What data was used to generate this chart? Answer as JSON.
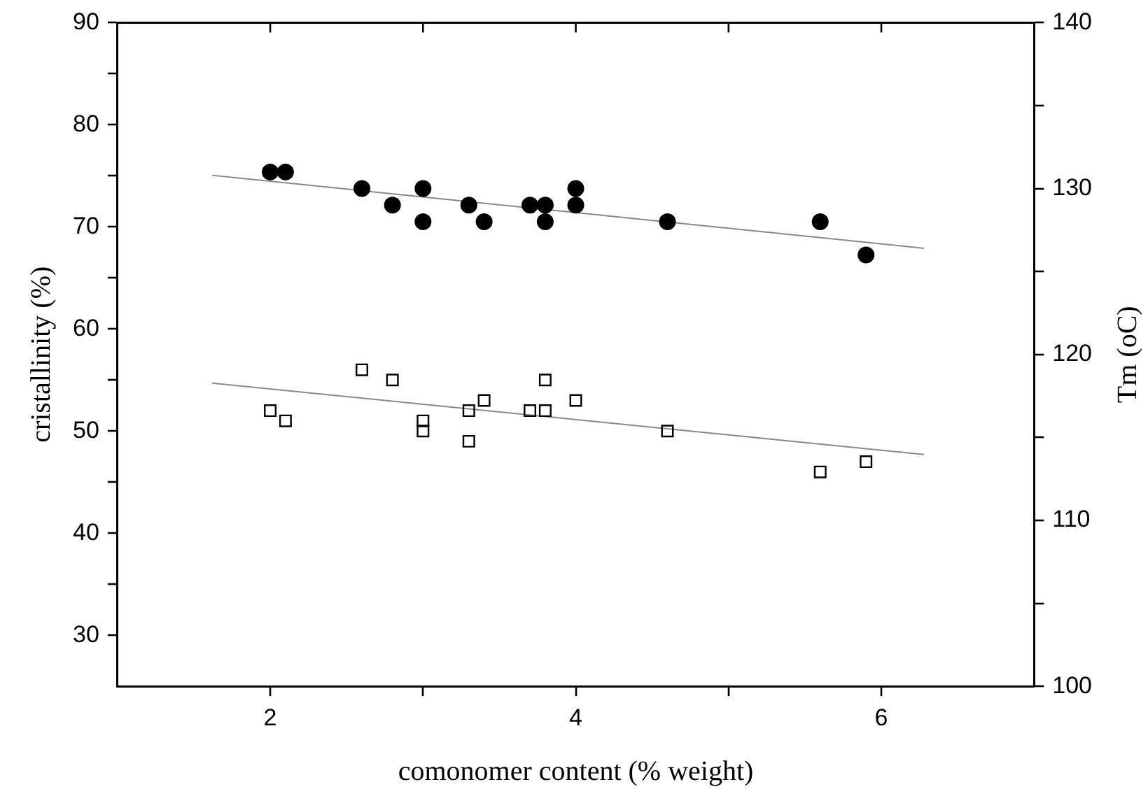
{
  "chart_data": {
    "type": "scatter",
    "xlabel": "comonomer content (% weight)",
    "ylabel": "cristallinity (%)",
    "y2label": "Tm (oC)",
    "xlim": [
      1,
      7
    ],
    "xticks": [
      2,
      {
        "value": 3,
        "label": null
      },
      4,
      {
        "value": 5,
        "label": null
      },
      6
    ],
    "ylim": [
      25,
      90
    ],
    "yticks": [
      30,
      {
        "value": 35,
        "label": null
      },
      40,
      {
        "value": 45,
        "label": null
      },
      50,
      {
        "value": 55,
        "label": null
      },
      60,
      {
        "value": 65,
        "label": null
      },
      70,
      {
        "value": 75,
        "label": null
      },
      80,
      {
        "value": 85,
        "label": null
      },
      90
    ],
    "y2lim": [
      100,
      140
    ],
    "y2ticks": [
      100,
      {
        "value": 105,
        "label": null
      },
      110,
      {
        "value": 115,
        "label": null
      },
      120,
      {
        "value": 125,
        "label": null
      },
      130,
      {
        "value": 135,
        "label": null
      },
      140
    ],
    "grid": false,
    "legend": false,
    "series": [
      {
        "axis": "y2",
        "marker": "circle",
        "color": "#000000",
        "x": [
          2.0,
          2.1,
          2.6,
          2.8,
          3.0,
          3.0,
          3.3,
          3.4,
          3.7,
          3.8,
          3.8,
          4.0,
          4.0,
          4.6,
          5.6,
          5.9
        ],
        "values": [
          131,
          131,
          130,
          129,
          130,
          128,
          129,
          128,
          129,
          129,
          128,
          130,
          129,
          128,
          128,
          126
        ]
      },
      {
        "axis": "y",
        "marker": "square",
        "color": "#000000",
        "x": [
          2.0,
          2.1,
          2.6,
          2.8,
          3.0,
          3.0,
          3.3,
          3.3,
          3.4,
          3.7,
          3.8,
          3.8,
          4.0,
          4.6,
          5.6,
          5.9
        ],
        "values": [
          52,
          51,
          56,
          55,
          51,
          50,
          52,
          49,
          53,
          52,
          55,
          52,
          53,
          50,
          46,
          47
        ]
      },
      {
        "type": "line",
        "axis": "y2",
        "marker": "none",
        "line_style": "solid",
        "color": "#888888",
        "x": [
          1.62,
          6.28
        ],
        "values": [
          130.8,
          126.4
        ]
      },
      {
        "type": "line",
        "axis": "y",
        "marker": "none",
        "line_style": "solid",
        "color": "#888888",
        "x": [
          1.62,
          6.28
        ],
        "values": [
          54.7,
          47.7
        ]
      }
    ]
  }
}
